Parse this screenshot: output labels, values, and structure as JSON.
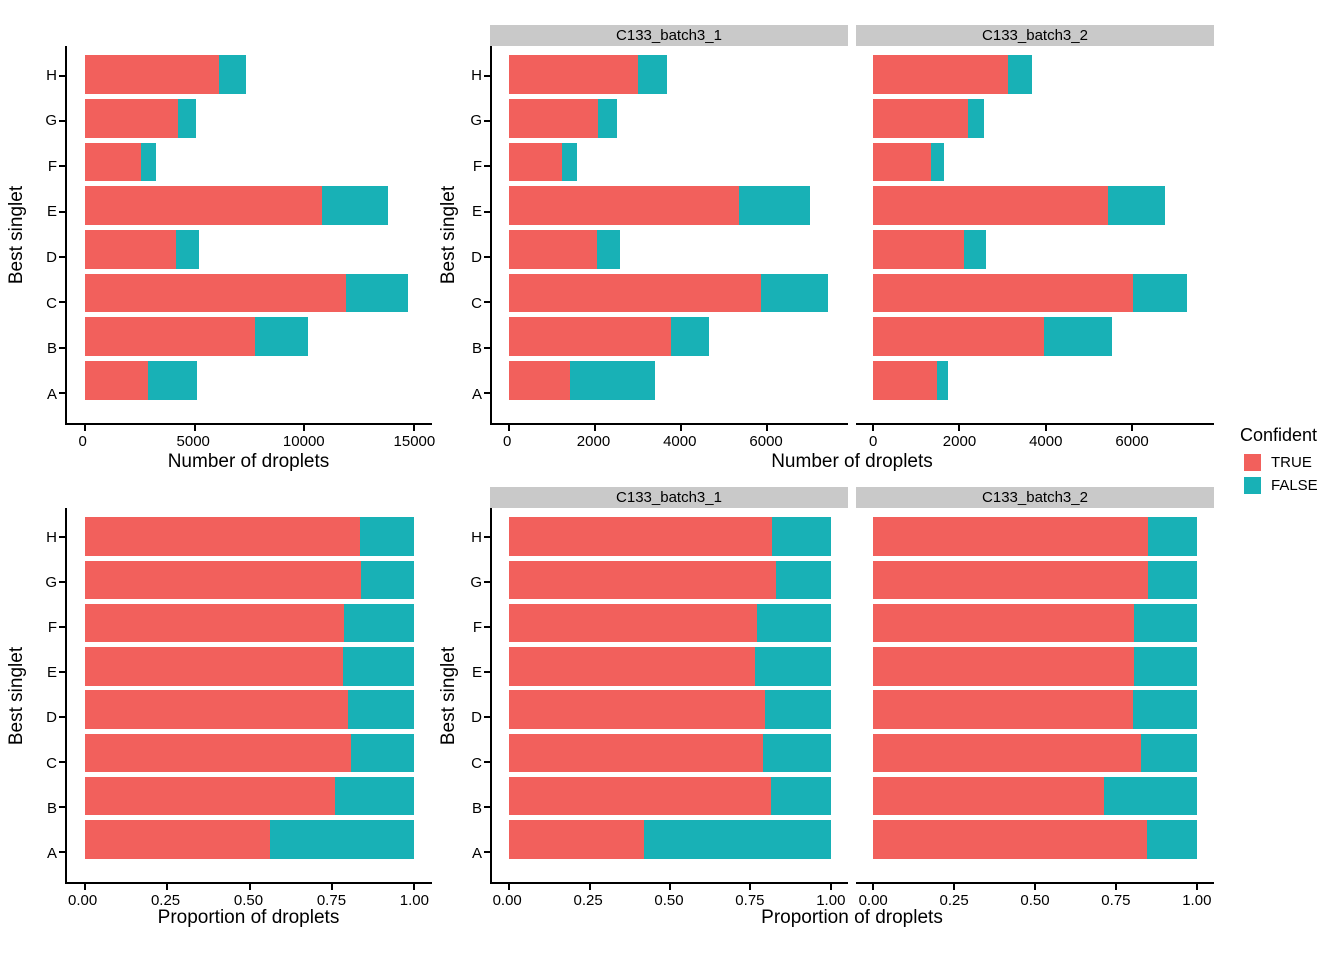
{
  "colors": {
    "true": "#F2605C",
    "false": "#18B1B6",
    "strip_bg": "#C9C9C9",
    "axis": "#000000",
    "panel_bg": "#FFFFFF"
  },
  "categories": [
    "A",
    "B",
    "C",
    "D",
    "E",
    "F",
    "G",
    "H"
  ],
  "legend": {
    "title": "Confident",
    "items": [
      {
        "label": "TRUE",
        "color": "#F2605C"
      },
      {
        "label": "FALSE",
        "color": "#18B1B6"
      }
    ]
  },
  "chart_data": [
    {
      "id": "counts-all",
      "type": "bar",
      "orientation": "horizontal",
      "stacked": true,
      "grid": false,
      "xlabel": "Number of droplets",
      "ylabel": "Best singlet",
      "categories": [
        "A",
        "B",
        "C",
        "D",
        "E",
        "F",
        "G",
        "H"
      ],
      "series": [
        {
          "name": "TRUE",
          "values": [
            2890,
            7730,
            11890,
            4150,
            10810,
            2560,
            4270,
            6120
          ]
        },
        {
          "name": "FALSE",
          "values": [
            2240,
            2450,
            2820,
            1050,
            2970,
            680,
            820,
            1220
          ]
        }
      ],
      "x_ticks": [
        0,
        5000,
        10000,
        15000
      ],
      "x_tick_labels": [
        "0",
        "5000",
        "10000",
        "15000"
      ],
      "xlim": [
        0,
        15000
      ]
    },
    {
      "id": "counts-by-sample",
      "type": "bar",
      "orientation": "horizontal",
      "stacked": true,
      "grid": false,
      "xlabel": "Number of droplets",
      "ylabel": "Best singlet",
      "categories": [
        "A",
        "B",
        "C",
        "D",
        "E",
        "F",
        "G",
        "H"
      ],
      "facets": [
        {
          "label": "C133_batch3_1",
          "series": [
            {
              "name": "TRUE",
              "values": [
                1420,
                3780,
                5860,
                2050,
                5360,
                1230,
                2080,
                3000
              ]
            },
            {
              "name": "FALSE",
              "values": [
                1970,
                870,
                1580,
                530,
                1660,
                360,
                430,
                670
              ]
            }
          ]
        },
        {
          "label": "C133_batch3_2",
          "series": [
            {
              "name": "TRUE",
              "values": [
                1470,
                3950,
                6030,
                2100,
                5450,
                1330,
                2190,
                3120
              ]
            },
            {
              "name": "FALSE",
              "values": [
                270,
                1580,
                1240,
                520,
                1310,
                320,
                390,
                550
              ]
            }
          ]
        }
      ],
      "x_ticks": [
        0,
        2000,
        4000,
        6000
      ],
      "x_tick_labels": [
        "0",
        "2000",
        "4000",
        "6000"
      ],
      "xlim": [
        0,
        7500
      ]
    },
    {
      "id": "proportions-all",
      "type": "bar",
      "orientation": "horizontal",
      "stacked": true,
      "grid": false,
      "xlabel": "Proportion of droplets",
      "ylabel": "Best singlet",
      "categories": [
        "A",
        "B",
        "C",
        "D",
        "E",
        "F",
        "G",
        "H"
      ],
      "series": [
        {
          "name": "TRUE",
          "values": [
            0.563,
            0.759,
            0.808,
            0.798,
            0.784,
            0.787,
            0.839,
            0.834
          ]
        },
        {
          "name": "FALSE",
          "values": [
            0.437,
            0.241,
            0.192,
            0.202,
            0.216,
            0.213,
            0.161,
            0.166
          ]
        }
      ],
      "x_ticks": [
        0,
        0.25,
        0.5,
        0.75,
        1.0
      ],
      "x_tick_labels": [
        "0.00",
        "0.25",
        "0.50",
        "0.75",
        "1.00"
      ],
      "xlim": [
        0,
        1
      ]
    },
    {
      "id": "proportions-by-sample",
      "type": "bar",
      "orientation": "horizontal",
      "stacked": true,
      "grid": false,
      "xlabel": "Proportion of droplets",
      "ylabel": "Best singlet",
      "categories": [
        "A",
        "B",
        "C",
        "D",
        "E",
        "F",
        "G",
        "H"
      ],
      "facets": [
        {
          "label": "C133_batch3_1",
          "series": [
            {
              "name": "TRUE",
              "values": [
                0.419,
                0.813,
                0.788,
                0.795,
                0.764,
                0.77,
                0.829,
                0.817
              ]
            },
            {
              "name": "FALSE",
              "values": [
                0.581,
                0.187,
                0.212,
                0.205,
                0.236,
                0.23,
                0.171,
                0.183
              ]
            }
          ]
        },
        {
          "label": "C133_batch3_2",
          "series": [
            {
              "name": "TRUE",
              "values": [
                0.845,
                0.714,
                0.829,
                0.802,
                0.806,
                0.806,
                0.849,
                0.85
              ]
            },
            {
              "name": "FALSE",
              "values": [
                0.155,
                0.286,
                0.171,
                0.198,
                0.194,
                0.194,
                0.151,
                0.15
              ]
            }
          ]
        }
      ],
      "x_ticks": [
        0,
        0.25,
        0.5,
        0.75,
        1.0
      ],
      "x_tick_labels": [
        "0.00",
        "0.25",
        "0.50",
        "0.75",
        "1.00"
      ],
      "xlim": [
        0,
        1
      ]
    }
  ]
}
